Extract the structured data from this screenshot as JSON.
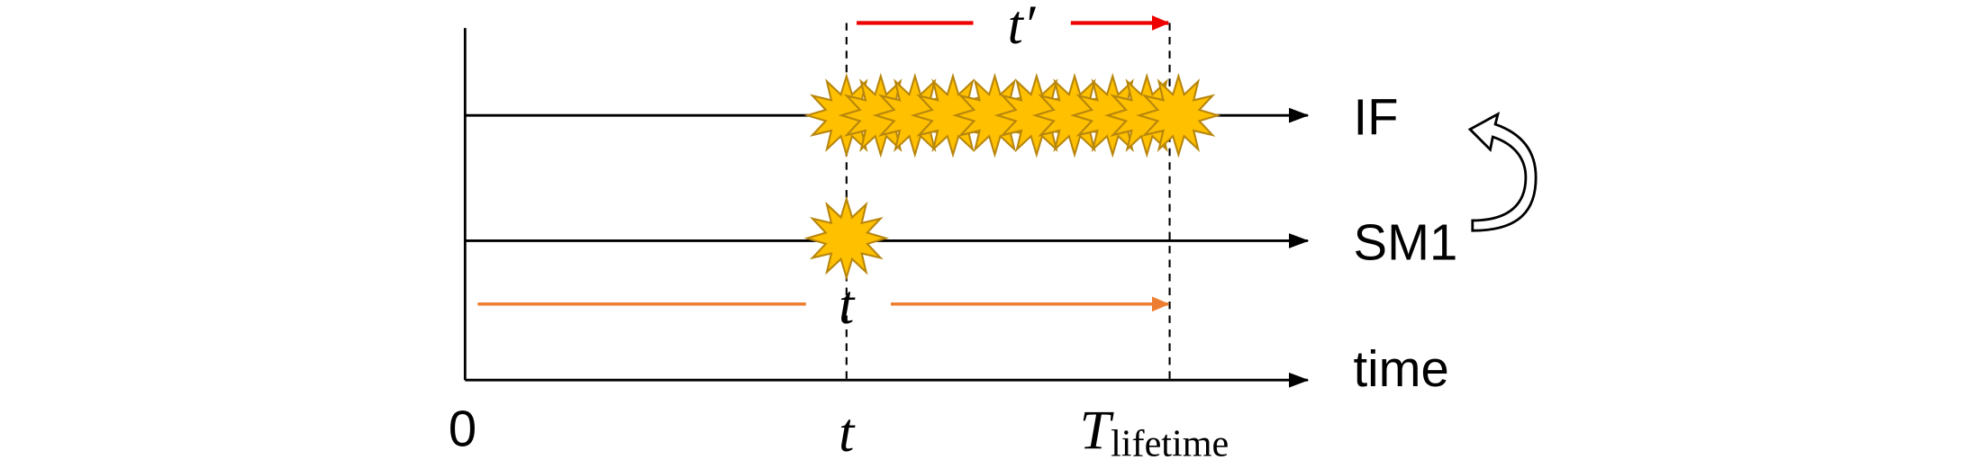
{
  "labels": {
    "t_prime": "t′",
    "if_line": "IF",
    "sm1_line": "SM1",
    "t_arrow": "t",
    "time_axis": "time",
    "origin": "0",
    "t_tick": "t",
    "t_lifetime_main": "T",
    "t_lifetime_sub": "lifetime"
  }
}
